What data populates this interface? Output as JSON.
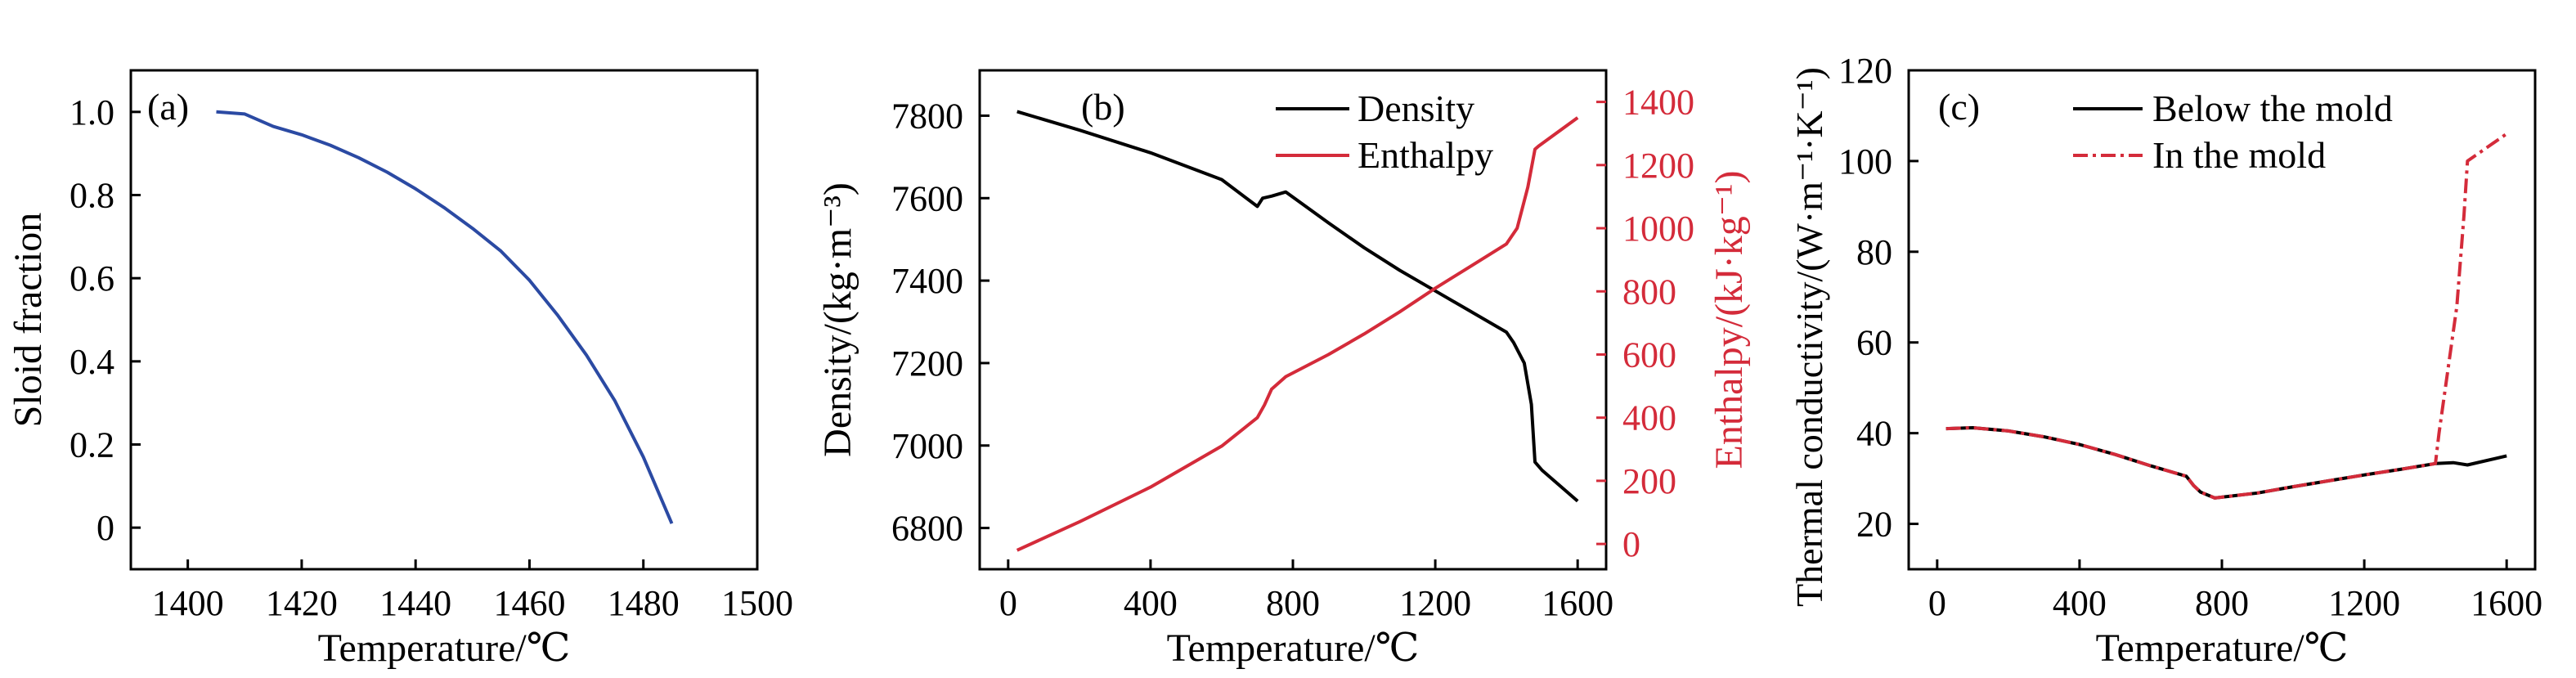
{
  "chart_data": [
    {
      "type": "line",
      "panel": "(a)",
      "xlabel": "Temperature/℃",
      "ylabel": "Sloid fraction",
      "xlim": [
        1390,
        1500
      ],
      "ylim": [
        -0.1,
        1.1
      ],
      "xticks": [
        "1400",
        "1420",
        "1440",
        "1460",
        "1480",
        "1500"
      ],
      "yticks": [
        "0",
        "0.2",
        "0.4",
        "0.6",
        "0.8",
        "1.0"
      ],
      "xtick_values": [
        1400,
        1420,
        1440,
        1460,
        1480,
        1500
      ],
      "ytick_values": [
        0,
        0.2,
        0.4,
        0.6,
        0.8,
        1.0
      ],
      "series": [
        {
          "color": "#2b4aa3",
          "x": [
            1405,
            1410,
            1415,
            1420,
            1425,
            1430,
            1435,
            1440,
            1445,
            1450,
            1455,
            1460,
            1465,
            1470,
            1475,
            1480,
            1485
          ],
          "y": [
            1.0,
            0.995,
            0.965,
            0.945,
            0.92,
            0.89,
            0.855,
            0.815,
            0.77,
            0.72,
            0.665,
            0.595,
            0.51,
            0.415,
            0.305,
            0.17,
            0.01
          ]
        }
      ]
    },
    {
      "type": "line",
      "panel": "(b)",
      "xlabel": "Temperature/℃",
      "ylabel": "Density/(kg·m⁻³)",
      "ylabel2": "Enthalpy/(kJ·kg⁻¹)",
      "xlim": [
        -80,
        1680
      ],
      "ylim": [
        6700,
        7910
      ],
      "ylim2": [
        -80,
        1500
      ],
      "xticks": [
        "0",
        "400",
        "800",
        "1200",
        "1600"
      ],
      "xtick_values": [
        0,
        400,
        800,
        1200,
        1600
      ],
      "yticks": [
        "6800",
        "7000",
        "7200",
        "7400",
        "7600",
        "7800"
      ],
      "ytick_values": [
        6800,
        7000,
        7200,
        7400,
        7600,
        7800
      ],
      "yticks2": [
        "0",
        "200",
        "400",
        "600",
        "800",
        "1000",
        "1200",
        "1400"
      ],
      "ytick2_values": [
        0,
        200,
        400,
        600,
        800,
        1000,
        1200,
        1400
      ],
      "series": [
        {
          "name": "Density",
          "axis": "left",
          "color": "#000000",
          "x": [
            25,
            200,
            400,
            600,
            700,
            715,
            740,
            780,
            900,
            1000,
            1100,
            1200,
            1300,
            1400,
            1420,
            1450,
            1470,
            1480,
            1500,
            1600
          ],
          "y": [
            7810,
            7765,
            7710,
            7645,
            7580,
            7600,
            7605,
            7615,
            7540,
            7480,
            7425,
            7375,
            7325,
            7275,
            7250,
            7200,
            7100,
            6960,
            6940,
            6865
          ]
        },
        {
          "name": "Enthalpy",
          "axis": "right",
          "color": "#d42b3a",
          "x": [
            25,
            200,
            400,
            600,
            700,
            720,
            740,
            780,
            900,
            1000,
            1100,
            1200,
            1300,
            1400,
            1430,
            1460,
            1480,
            1490,
            1600
          ],
          "y": [
            -20,
            70,
            180,
            310,
            400,
            440,
            490,
            530,
            600,
            665,
            735,
            810,
            880,
            950,
            1000,
            1130,
            1250,
            1260,
            1350
          ]
        }
      ],
      "legend_position": "top-right"
    },
    {
      "type": "line",
      "panel": "(c)",
      "xlabel": "Temperature/℃",
      "ylabel": "Thermal conductivity/(W·m⁻¹·K⁻¹)",
      "xlim": [
        -80,
        1680
      ],
      "ylim": [
        10,
        120
      ],
      "xticks": [
        "0",
        "400",
        "800",
        "1200",
        "1600"
      ],
      "xtick_values": [
        0,
        400,
        800,
        1200,
        1600
      ],
      "yticks": [
        "20",
        "40",
        "60",
        "80",
        "100",
        "120"
      ],
      "ytick_values": [
        20,
        40,
        60,
        80,
        100,
        120
      ],
      "series": [
        {
          "name": "Below the mold",
          "color": "#000000",
          "dash": "solid",
          "x": [
            25,
            100,
            200,
            300,
            400,
            500,
            600,
            700,
            720,
            740,
            780,
            900,
            1000,
            1100,
            1200,
            1300,
            1400,
            1450,
            1490,
            1600
          ],
          "y": [
            41,
            41.2,
            40.5,
            39.2,
            37.5,
            35.3,
            32.8,
            30.5,
            28.5,
            27,
            25.7,
            26.8,
            28.2,
            29.5,
            30.8,
            32,
            33.3,
            33.5,
            33.0,
            35
          ]
        },
        {
          "name": "In the mold",
          "color": "#d42b3a",
          "dash": "dashdot",
          "x": [
            25,
            100,
            200,
            300,
            400,
            500,
            600,
            700,
            720,
            740,
            780,
            900,
            1000,
            1100,
            1200,
            1300,
            1400,
            1410,
            1460,
            1480,
            1490,
            1600
          ],
          "y": [
            41,
            41.2,
            40.5,
            39.2,
            37.5,
            35.3,
            32.8,
            30.5,
            28.5,
            27,
            25.7,
            26.8,
            28.2,
            29.5,
            30.8,
            32,
            33.3,
            40,
            68,
            88,
            100,
            106
          ]
        }
      ],
      "legend_position": "top"
    }
  ]
}
